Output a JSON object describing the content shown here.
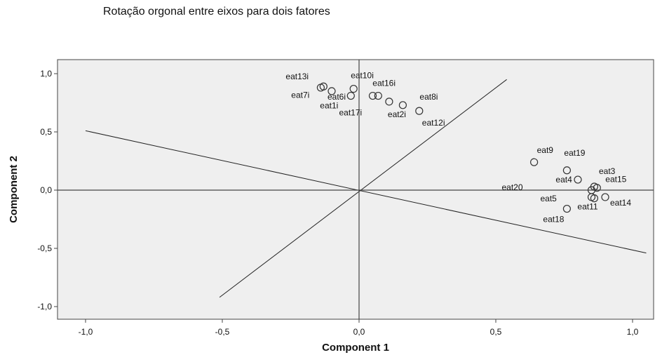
{
  "chart_data": {
    "type": "scatter",
    "title": "Rotação orgonal entre eixos para dois fatores",
    "xlabel": "Component 1",
    "ylabel": "Component 2",
    "xlim": [
      -1.1,
      1.08
    ],
    "ylim": [
      -1.1,
      1.1
    ],
    "x_ticks": [
      -1.0,
      -0.5,
      0.0,
      0.5,
      1.0
    ],
    "x_tick_labels": [
      "-1,0",
      "-0,5",
      "0,0",
      "0,5",
      "1,0"
    ],
    "y_ticks": [
      1.0,
      0.5,
      0.0,
      -0.5,
      -1.0
    ],
    "y_tick_labels": [
      "1,0",
      "0,5",
      "0,0",
      "-0,5",
      "-1,0"
    ],
    "grid": false,
    "background": "#efefef",
    "reference_lines": [
      {
        "from": [
          -1.0,
          0.51
        ],
        "to": [
          1.05,
          -0.54
        ]
      },
      {
        "from": [
          -0.51,
          -0.92
        ],
        "to": [
          0.54,
          0.95
        ]
      }
    ],
    "points": [
      {
        "label": "eat13i",
        "x": -0.14,
        "y": 0.88
      },
      {
        "label": "eat10i",
        "x": -0.02,
        "y": 0.87
      },
      {
        "label": "eat7i",
        "x": -0.13,
        "y": 0.89
      },
      {
        "label": "eat6i",
        "x": -0.1,
        "y": 0.85
      },
      {
        "label": "eat16i",
        "x": 0.07,
        "y": 0.81
      },
      {
        "label": "eat1i",
        "x": -0.03,
        "y": 0.81
      },
      {
        "label": "eat8i",
        "x": 0.16,
        "y": 0.73
      },
      {
        "label": "eat2i",
        "x": 0.11,
        "y": 0.76
      },
      {
        "label": "eat17i",
        "x": 0.05,
        "y": 0.81
      },
      {
        "label": "eat12i",
        "x": 0.22,
        "y": 0.68
      },
      {
        "label": "eat9",
        "x": 0.64,
        "y": 0.24
      },
      {
        "label": "eat19",
        "x": 0.76,
        "y": 0.17
      },
      {
        "label": "eat3",
        "x": 0.8,
        "y": 0.09
      },
      {
        "label": "eat20",
        "x": 0.85,
        "y": 0.0
      },
      {
        "label": "eat4",
        "x": 0.86,
        "y": 0.03
      },
      {
        "label": "eat15",
        "x": 0.87,
        "y": 0.02
      },
      {
        "label": "eat5",
        "x": 0.85,
        "y": -0.06
      },
      {
        "label": "eat14",
        "x": 0.9,
        "y": -0.06
      },
      {
        "label": "eat11",
        "x": 0.86,
        "y": -0.07
      },
      {
        "label": "eat18",
        "x": 0.76,
        "y": -0.16
      }
    ]
  }
}
